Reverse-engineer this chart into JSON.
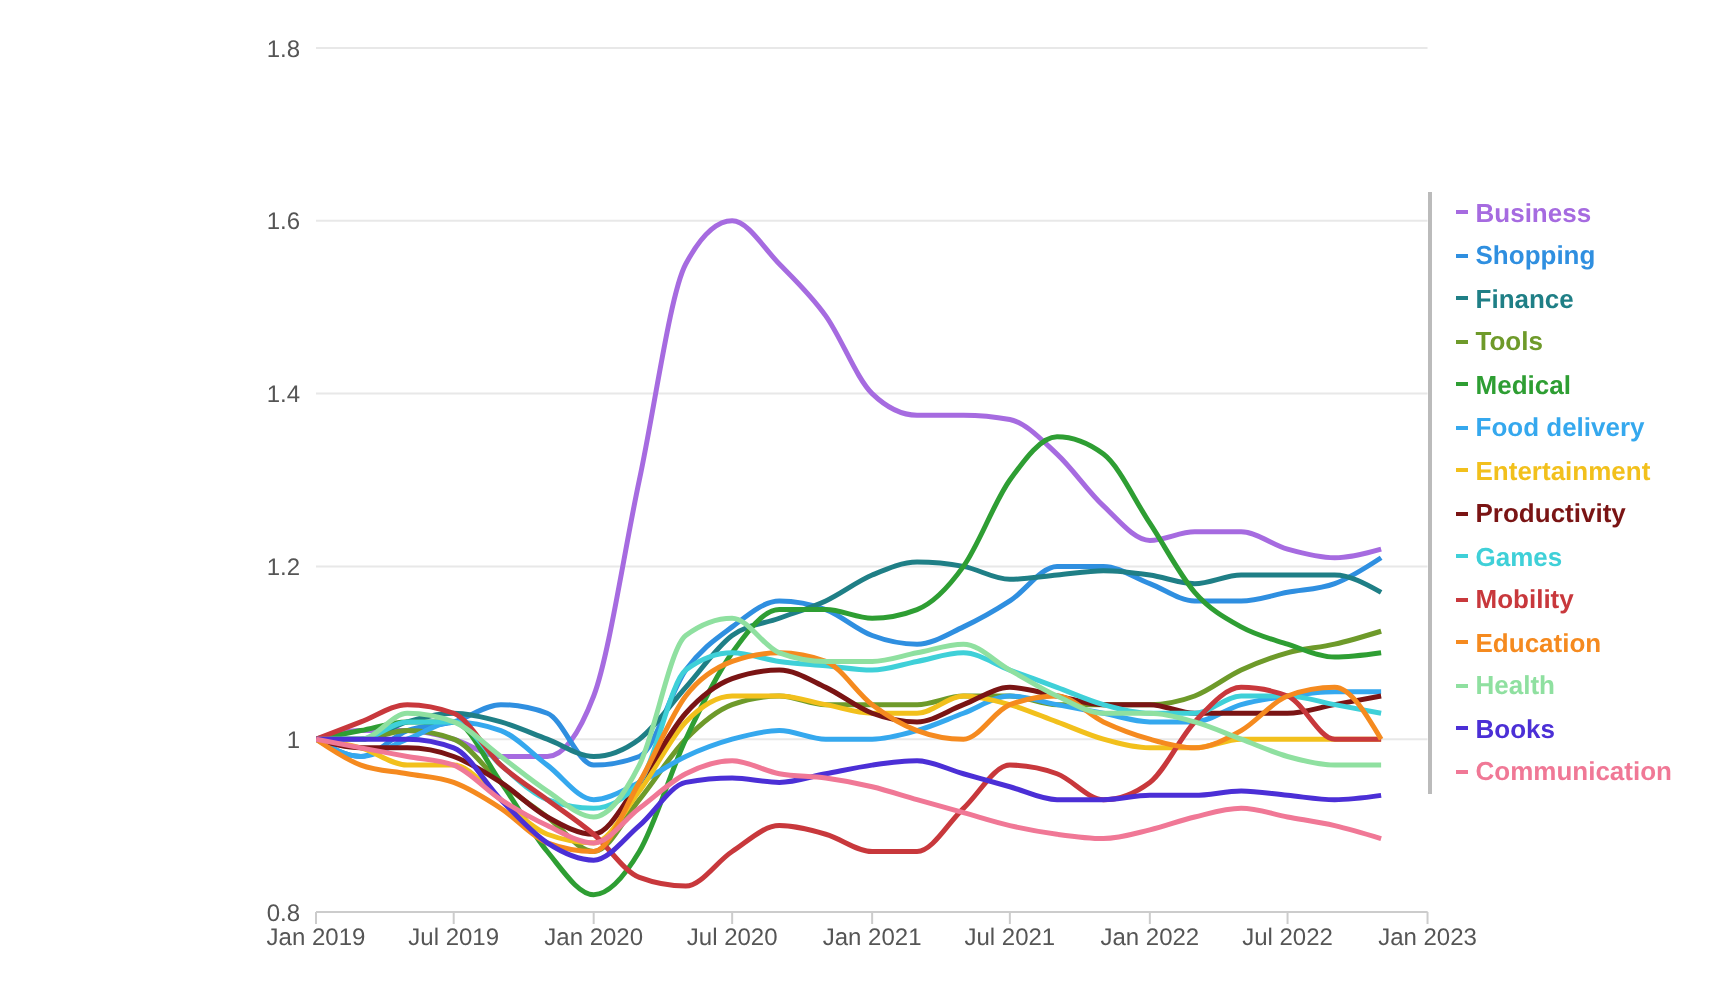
{
  "chart_data": {
    "type": "line",
    "x": [
      "2019-01",
      "2019-03",
      "2019-05",
      "2019-07",
      "2019-09",
      "2019-11",
      "2020-01",
      "2020-03",
      "2020-05",
      "2020-07",
      "2020-09",
      "2020-11",
      "2021-01",
      "2021-03",
      "2021-05",
      "2021-07",
      "2021-09",
      "2021-11",
      "2022-01",
      "2022-03",
      "2022-05",
      "2022-07",
      "2022-09",
      "2022-11"
    ],
    "xlim": [
      "2019-01",
      "2023-01"
    ],
    "xticks": [
      {
        "value": "2019-01",
        "label": "Jan 2019"
      },
      {
        "value": "2019-07",
        "label": "Jul 2019"
      },
      {
        "value": "2020-01",
        "label": "Jan 2020"
      },
      {
        "value": "2020-07",
        "label": "Jul 2020"
      },
      {
        "value": "2021-01",
        "label": "Jan 2021"
      },
      {
        "value": "2021-07",
        "label": "Jul 2021"
      },
      {
        "value": "2022-01",
        "label": "Jan 2022"
      },
      {
        "value": "2022-07",
        "label": "Jul 2022"
      },
      {
        "value": "2023-01",
        "label": "Jan 2023"
      }
    ],
    "ylim": [
      0.8,
      1.8
    ],
    "yticks": [
      0.8,
      1,
      1.2,
      1.4,
      1.6,
      1.8
    ],
    "grid": "y",
    "legend": "right",
    "marker": "none",
    "line_style": "solid",
    "series": [
      {
        "name": "Business",
        "color": "#a66be0",
        "values": [
          1.0,
          1.01,
          1.01,
          1.0,
          0.98,
          0.98,
          1.05,
          1.3,
          1.55,
          1.6,
          1.55,
          1.49,
          1.4,
          1.375,
          1.375,
          1.37,
          1.33,
          1.27,
          1.23,
          1.24,
          1.24,
          1.22,
          1.21,
          1.22
        ]
      },
      {
        "name": "Shopping",
        "color": "#2f8fe0",
        "values": [
          1.0,
          0.98,
          1.01,
          1.02,
          1.04,
          1.03,
          0.97,
          0.98,
          1.08,
          1.13,
          1.16,
          1.15,
          1.12,
          1.11,
          1.13,
          1.16,
          1.2,
          1.2,
          1.18,
          1.16,
          1.16,
          1.17,
          1.18,
          1.21
        ]
      },
      {
        "name": "Finance",
        "color": "#1f7f86",
        "values": [
          1.0,
          1.0,
          1.02,
          1.03,
          1.02,
          1.0,
          0.98,
          1.0,
          1.06,
          1.12,
          1.14,
          1.16,
          1.19,
          1.205,
          1.2,
          1.185,
          1.19,
          1.195,
          1.19,
          1.18,
          1.19,
          1.19,
          1.19,
          1.17
        ]
      },
      {
        "name": "Tools",
        "color": "#6e9a2a",
        "values": [
          1.0,
          1.0,
          1.01,
          1.0,
          0.95,
          0.91,
          0.87,
          0.93,
          1.0,
          1.04,
          1.05,
          1.04,
          1.04,
          1.04,
          1.05,
          1.05,
          1.04,
          1.04,
          1.04,
          1.05,
          1.08,
          1.1,
          1.11,
          1.125
        ]
      },
      {
        "name": "Medical",
        "color": "#2e9e33",
        "values": [
          1.0,
          1.01,
          1.02,
          1.02,
          0.95,
          0.87,
          0.82,
          0.87,
          1.0,
          1.1,
          1.15,
          1.15,
          1.14,
          1.15,
          1.2,
          1.3,
          1.35,
          1.33,
          1.25,
          1.17,
          1.13,
          1.11,
          1.095,
          1.1
        ]
      },
      {
        "name": "Food delivery",
        "color": "#35a8ee",
        "values": [
          1.0,
          0.98,
          1.0,
          1.02,
          1.01,
          0.97,
          0.93,
          0.95,
          0.98,
          1.0,
          1.01,
          1.0,
          1.0,
          1.01,
          1.03,
          1.05,
          1.04,
          1.03,
          1.02,
          1.02,
          1.04,
          1.05,
          1.055,
          1.055
        ]
      },
      {
        "name": "Entertainment",
        "color": "#f2c01c",
        "values": [
          1.0,
          0.99,
          0.97,
          0.97,
          0.93,
          0.89,
          0.88,
          0.94,
          1.02,
          1.05,
          1.05,
          1.04,
          1.03,
          1.03,
          1.05,
          1.04,
          1.02,
          1.0,
          0.99,
          0.99,
          1.0,
          1.0,
          1.0,
          1.0
        ]
      },
      {
        "name": "Productivity",
        "color": "#7a1414",
        "values": [
          1.0,
          0.99,
          0.99,
          0.98,
          0.95,
          0.91,
          0.89,
          0.95,
          1.03,
          1.07,
          1.08,
          1.06,
          1.03,
          1.02,
          1.04,
          1.06,
          1.05,
          1.04,
          1.04,
          1.03,
          1.03,
          1.03,
          1.04,
          1.05
        ]
      },
      {
        "name": "Games",
        "color": "#3fd0d8",
        "values": [
          1.0,
          1.0,
          1.02,
          1.02,
          0.97,
          0.93,
          0.92,
          0.95,
          1.08,
          1.1,
          1.09,
          1.085,
          1.08,
          1.09,
          1.1,
          1.08,
          1.06,
          1.04,
          1.03,
          1.03,
          1.05,
          1.05,
          1.04,
          1.03
        ]
      },
      {
        "name": "Mobility",
        "color": "#c8383c",
        "values": [
          1.0,
          1.02,
          1.04,
          1.03,
          0.97,
          0.93,
          0.89,
          0.84,
          0.83,
          0.87,
          0.9,
          0.89,
          0.87,
          0.87,
          0.92,
          0.97,
          0.96,
          0.93,
          0.95,
          1.02,
          1.06,
          1.05,
          1.0,
          1.0
        ]
      },
      {
        "name": "Education",
        "color": "#f58a1f",
        "values": [
          1.0,
          0.97,
          0.96,
          0.95,
          0.92,
          0.88,
          0.87,
          0.95,
          1.05,
          1.09,
          1.1,
          1.09,
          1.04,
          1.01,
          1.0,
          1.04,
          1.05,
          1.02,
          1.0,
          0.99,
          1.01,
          1.05,
          1.06,
          1.0
        ]
      },
      {
        "name": "Health",
        "color": "#8fe0a0",
        "values": [
          1.0,
          1.0,
          1.03,
          1.02,
          0.98,
          0.94,
          0.91,
          0.97,
          1.12,
          1.14,
          1.1,
          1.09,
          1.09,
          1.1,
          1.11,
          1.08,
          1.05,
          1.03,
          1.03,
          1.02,
          1.0,
          0.98,
          0.97,
          0.97
        ]
      },
      {
        "name": "Books",
        "color": "#4b2fd6",
        "values": [
          1.0,
          1.0,
          1.0,
          0.99,
          0.93,
          0.88,
          0.86,
          0.9,
          0.95,
          0.955,
          0.95,
          0.96,
          0.97,
          0.975,
          0.96,
          0.945,
          0.93,
          0.93,
          0.935,
          0.935,
          0.94,
          0.935,
          0.93,
          0.935
        ]
      },
      {
        "name": "Communication",
        "color": "#f07896",
        "values": [
          1.0,
          0.99,
          0.98,
          0.97,
          0.93,
          0.9,
          0.88,
          0.92,
          0.96,
          0.975,
          0.96,
          0.955,
          0.945,
          0.93,
          0.915,
          0.9,
          0.89,
          0.885,
          0.895,
          0.91,
          0.92,
          0.91,
          0.9,
          0.885
        ]
      }
    ]
  }
}
